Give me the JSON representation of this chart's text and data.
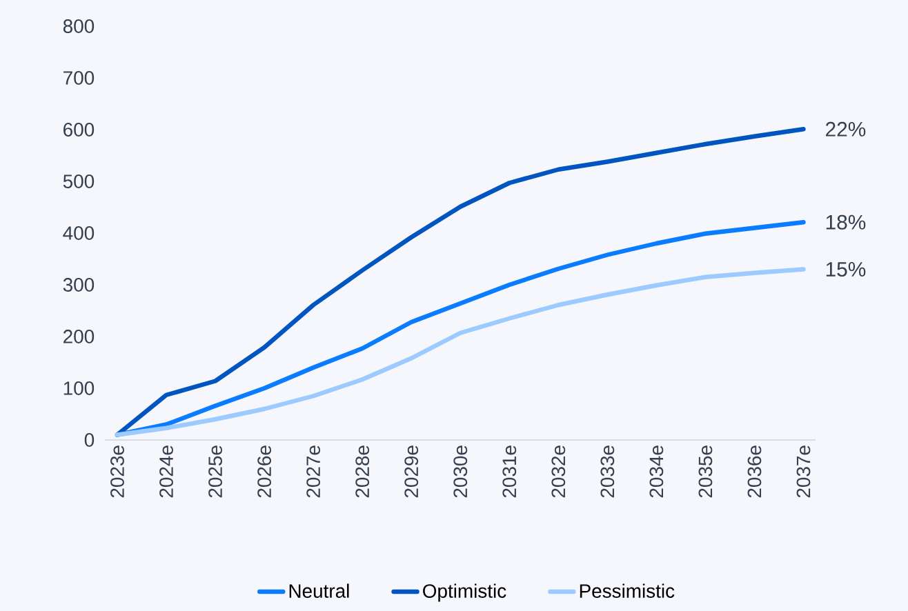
{
  "chart_data": {
    "type": "line",
    "categories": [
      "2023e",
      "2024e",
      "2025e",
      "2026e",
      "2027e",
      "2028e",
      "2029e",
      "2030e",
      "2031e",
      "2032e",
      "2033e",
      "2034e",
      "2035e",
      "2036e",
      "2037e"
    ],
    "series": [
      {
        "name": "Neutral",
        "color": "#0a7cff",
        "values": [
          10,
          30,
          66,
          100,
          140,
          177,
          228,
          264,
          300,
          331,
          358,
          380,
          399,
          410,
          421
        ]
      },
      {
        "name": "Optimistic",
        "color": "#0055c0",
        "values": [
          10,
          87,
          114,
          179,
          261,
          328,
          392,
          451,
          497,
          523,
          538,
          555,
          572,
          587,
          601
        ]
      },
      {
        "name": "Pessimistic",
        "color": "#9ecbff",
        "values": [
          10,
          23,
          40,
          60,
          85,
          117,
          158,
          207,
          235,
          261,
          281,
          299,
          315,
          323,
          330
        ]
      }
    ],
    "ylim": [
      0,
      800
    ],
    "yticks": [
      0,
      100,
      200,
      300,
      400,
      500,
      600,
      700,
      800
    ],
    "annotations": [
      {
        "text": "22%",
        "x": "2037e",
        "y": 601
      },
      {
        "text": "18%",
        "x": "2037e",
        "y": 421
      },
      {
        "text": "15%",
        "x": "2037e",
        "y": 330
      }
    ],
    "grid": false,
    "legend": "bottom",
    "marker": "none",
    "line_style": "solid"
  }
}
